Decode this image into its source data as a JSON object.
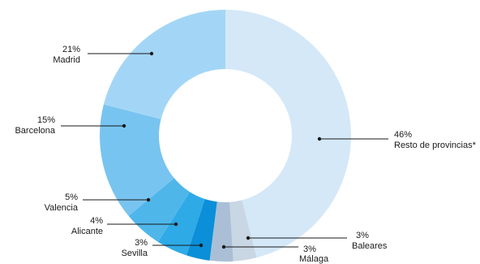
{
  "chart_data": {
    "type": "pie",
    "style": "donut",
    "title": "",
    "slices": [
      {
        "label": "Resto de provincias*",
        "value_label": "46%",
        "value": 46,
        "color": "#d4e8f8"
      },
      {
        "label": "Baleares",
        "value_label": "3%",
        "value": 3,
        "color": "#c9d6e4"
      },
      {
        "label": "Málaga",
        "value_label": "3%",
        "value": 3,
        "color": "#aabfd6"
      },
      {
        "label": "Sevilla",
        "value_label": "3%",
        "value": 3,
        "color": "#0a8fd8"
      },
      {
        "label": "Alicante",
        "value_label": "4%",
        "value": 4,
        "color": "#2eaae6"
      },
      {
        "label": "Valencia",
        "value_label": "5%",
        "value": 5,
        "color": "#4fb6ea"
      },
      {
        "label": "Barcelona",
        "value_label": "15%",
        "value": 15,
        "color": "#78c4f0"
      },
      {
        "label": "Madrid",
        "value_label": "21%",
        "value": 21,
        "color": "#a3d6f6"
      }
    ]
  }
}
